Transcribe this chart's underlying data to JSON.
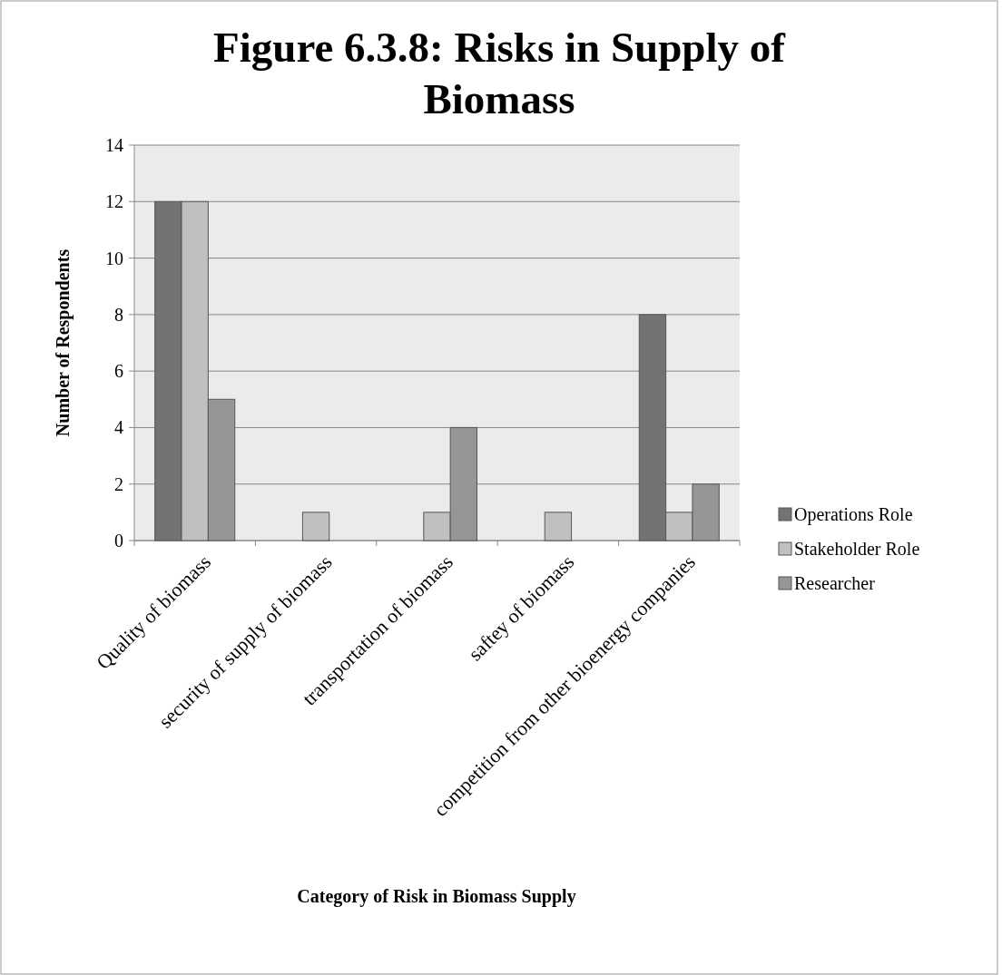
{
  "chart_data": {
    "type": "bar",
    "title": "Figure 6.3.8:  Risks in Supply of Biomass",
    "xlabel": "Category of Risk in Biomass Supply",
    "ylabel": "Number of Respondents",
    "categories": [
      "Quality of biomass",
      "security of supply of biomass",
      "transportation of biomass",
      "saftey of biomass",
      "competition from other bioenergy companies"
    ],
    "series": [
      {
        "name": "Operations Role",
        "color": "#737373",
        "values": [
          12,
          0,
          0,
          0,
          8
        ]
      },
      {
        "name": "Stakeholder Role",
        "color": "#c0c0c0",
        "values": [
          12,
          1,
          1,
          1,
          1
        ]
      },
      {
        "name": "Researcher",
        "color": "#969696",
        "values": [
          5,
          0,
          4,
          0,
          2
        ]
      }
    ],
    "ylim": [
      0,
      14
    ],
    "yticks": [
      0,
      2,
      4,
      6,
      8,
      10,
      12,
      14
    ],
    "grid": "y",
    "legend": "right"
  }
}
